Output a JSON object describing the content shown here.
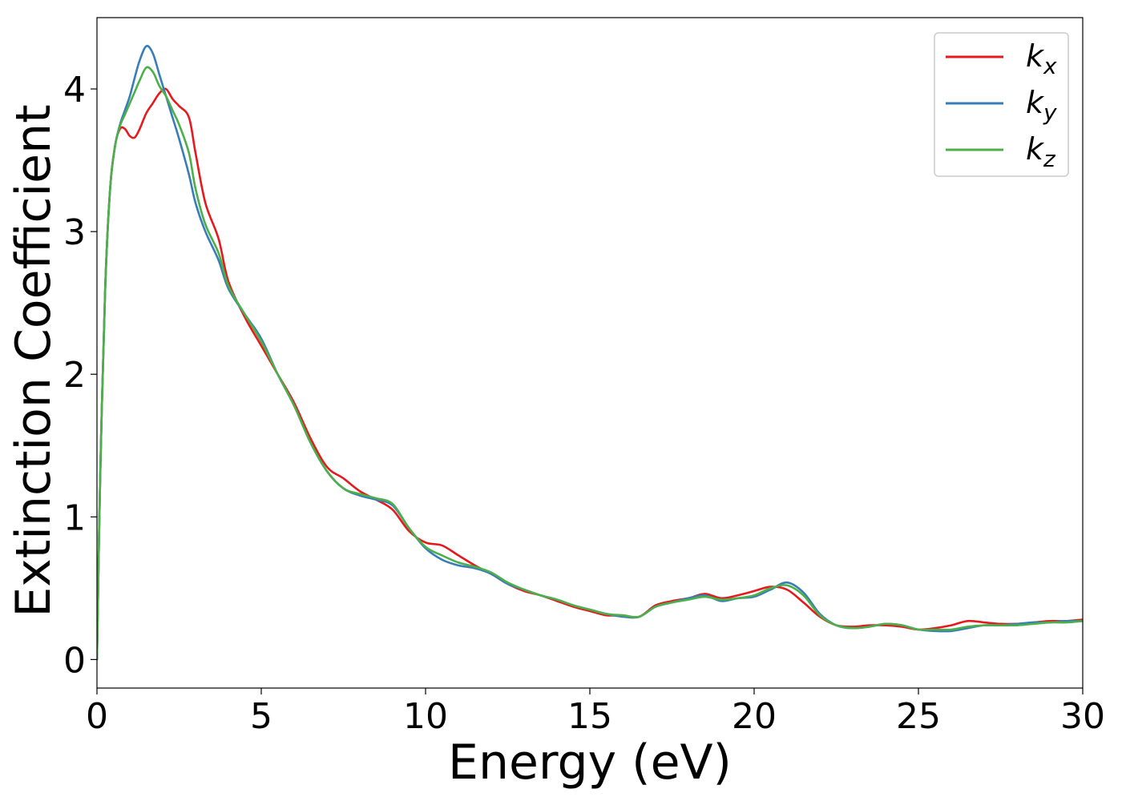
{
  "chart_data": {
    "type": "line",
    "title": "",
    "xlabel": "Energy (eV)",
    "ylabel": "Extinction Coefficient",
    "xlim": [
      0,
      30
    ],
    "ylim": [
      -0.2,
      4.5
    ],
    "xticks": [
      0,
      5,
      10,
      15,
      20,
      25,
      30
    ],
    "yticks": [
      0,
      1,
      2,
      3,
      4
    ],
    "grid": false,
    "legend_position": "top-right",
    "series": [
      {
        "name": "k_x",
        "label_main": "k",
        "label_sub": "x",
        "color": "#e41a1c",
        "x": [
          0,
          0.1,
          0.25,
          0.4,
          0.55,
          0.7,
          0.85,
          1.0,
          1.15,
          1.3,
          1.5,
          1.7,
          1.9,
          2.1,
          2.3,
          2.5,
          2.8,
          3.0,
          3.3,
          3.7,
          4.0,
          4.5,
          5.0,
          5.5,
          6.0,
          6.5,
          7.0,
          7.5,
          8.0,
          8.5,
          9.0,
          9.5,
          10.0,
          10.5,
          11.0,
          11.5,
          12.0,
          12.5,
          13.0,
          13.5,
          14.0,
          14.5,
          15.0,
          15.5,
          16.0,
          16.5,
          17.0,
          17.5,
          18.0,
          18.5,
          19.0,
          19.5,
          20.0,
          20.5,
          21.0,
          21.5,
          22.0,
          22.5,
          23.0,
          23.5,
          24.0,
          24.5,
          25.0,
          25.5,
          26.0,
          26.5,
          27.0,
          27.5,
          28.0,
          28.5,
          29.0,
          29.5,
          30.0
        ],
        "y": [
          0.0,
          1.3,
          2.6,
          3.3,
          3.6,
          3.72,
          3.72,
          3.67,
          3.66,
          3.72,
          3.83,
          3.9,
          3.97,
          4.0,
          3.93,
          3.88,
          3.8,
          3.55,
          3.2,
          2.95,
          2.65,
          2.4,
          2.2,
          2.0,
          1.8,
          1.55,
          1.35,
          1.27,
          1.18,
          1.12,
          1.05,
          0.9,
          0.82,
          0.8,
          0.73,
          0.66,
          0.6,
          0.53,
          0.48,
          0.45,
          0.41,
          0.37,
          0.34,
          0.31,
          0.31,
          0.3,
          0.38,
          0.41,
          0.43,
          0.46,
          0.43,
          0.45,
          0.48,
          0.51,
          0.49,
          0.4,
          0.3,
          0.24,
          0.23,
          0.24,
          0.24,
          0.23,
          0.21,
          0.22,
          0.24,
          0.27,
          0.26,
          0.25,
          0.25,
          0.26,
          0.27,
          0.27,
          0.28
        ]
      },
      {
        "name": "k_y",
        "label_main": "k",
        "label_sub": "y",
        "color": "#377eb8",
        "x": [
          0,
          0.1,
          0.25,
          0.4,
          0.55,
          0.7,
          0.85,
          1.0,
          1.15,
          1.3,
          1.5,
          1.7,
          1.9,
          2.1,
          2.3,
          2.5,
          2.8,
          3.0,
          3.3,
          3.7,
          4.0,
          4.5,
          5.0,
          5.5,
          6.0,
          6.5,
          7.0,
          7.5,
          8.0,
          8.5,
          9.0,
          9.5,
          10.0,
          10.5,
          11.0,
          11.5,
          12.0,
          12.5,
          13.0,
          13.5,
          14.0,
          14.5,
          15.0,
          15.5,
          16.0,
          16.5,
          17.0,
          17.5,
          18.0,
          18.5,
          19.0,
          19.5,
          20.0,
          20.5,
          21.0,
          21.5,
          22.0,
          22.5,
          23.0,
          23.5,
          24.0,
          24.5,
          25.0,
          25.5,
          26.0,
          26.5,
          27.0,
          27.5,
          28.0,
          28.5,
          29.0,
          29.5,
          30.0
        ],
        "y": [
          0.0,
          1.3,
          2.6,
          3.3,
          3.6,
          3.75,
          3.85,
          3.95,
          4.08,
          4.2,
          4.3,
          4.25,
          4.1,
          3.95,
          3.8,
          3.65,
          3.4,
          3.2,
          3.0,
          2.8,
          2.6,
          2.42,
          2.25,
          2.0,
          1.78,
          1.52,
          1.32,
          1.2,
          1.15,
          1.12,
          1.08,
          0.92,
          0.78,
          0.7,
          0.66,
          0.64,
          0.6,
          0.53,
          0.49,
          0.45,
          0.42,
          0.38,
          0.35,
          0.32,
          0.3,
          0.3,
          0.37,
          0.4,
          0.43,
          0.45,
          0.41,
          0.43,
          0.44,
          0.49,
          0.54,
          0.47,
          0.32,
          0.24,
          0.22,
          0.23,
          0.25,
          0.24,
          0.21,
          0.2,
          0.2,
          0.22,
          0.24,
          0.24,
          0.25,
          0.26,
          0.26,
          0.27,
          0.27
        ]
      },
      {
        "name": "k_z",
        "label_main": "k",
        "label_sub": "z",
        "color": "#4daf4a",
        "x": [
          0,
          0.1,
          0.25,
          0.4,
          0.55,
          0.7,
          0.85,
          1.0,
          1.15,
          1.3,
          1.5,
          1.7,
          1.9,
          2.1,
          2.3,
          2.5,
          2.8,
          3.0,
          3.3,
          3.7,
          4.0,
          4.5,
          5.0,
          5.5,
          6.0,
          6.5,
          7.0,
          7.5,
          8.0,
          8.5,
          9.0,
          9.5,
          10.0,
          10.5,
          11.0,
          11.5,
          12.0,
          12.5,
          13.0,
          13.5,
          14.0,
          14.5,
          15.0,
          15.5,
          16.0,
          16.5,
          17.0,
          17.5,
          18.0,
          18.5,
          19.0,
          19.5,
          20.0,
          20.5,
          21.0,
          21.5,
          22.0,
          22.5,
          23.0,
          23.5,
          24.0,
          24.5,
          25.0,
          25.5,
          26.0,
          26.5,
          27.0,
          27.5,
          28.0,
          28.5,
          29.0,
          29.5,
          30.0
        ],
        "y": [
          0.0,
          1.3,
          2.6,
          3.3,
          3.6,
          3.74,
          3.82,
          3.9,
          3.98,
          4.06,
          4.15,
          4.12,
          4.02,
          3.95,
          3.85,
          3.75,
          3.55,
          3.3,
          3.05,
          2.85,
          2.62,
          2.42,
          2.23,
          2.0,
          1.78,
          1.52,
          1.32,
          1.2,
          1.16,
          1.13,
          1.09,
          0.92,
          0.79,
          0.73,
          0.68,
          0.65,
          0.61,
          0.54,
          0.49,
          0.45,
          0.42,
          0.38,
          0.35,
          0.32,
          0.31,
          0.3,
          0.37,
          0.4,
          0.42,
          0.44,
          0.42,
          0.43,
          0.45,
          0.5,
          0.52,
          0.45,
          0.31,
          0.24,
          0.22,
          0.23,
          0.25,
          0.24,
          0.21,
          0.21,
          0.21,
          0.23,
          0.24,
          0.24,
          0.24,
          0.25,
          0.26,
          0.26,
          0.27
        ]
      }
    ]
  }
}
